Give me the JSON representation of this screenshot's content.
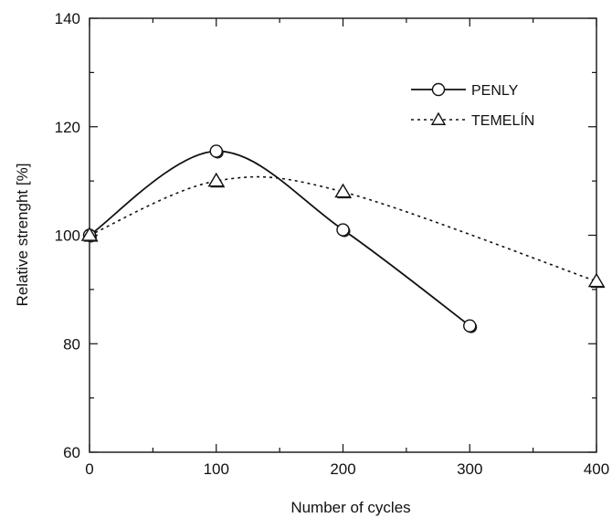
{
  "chart_data": {
    "type": "line",
    "xlabel": "Number of cycles",
    "ylabel": "Relative strenght [%]",
    "xlim": [
      0,
      400
    ],
    "ylim": [
      60,
      140
    ],
    "xticks": [
      0,
      100,
      200,
      300,
      400
    ],
    "yticks": [
      60,
      80,
      100,
      120,
      140
    ],
    "grid": false,
    "legend_position": "top-right",
    "series": [
      {
        "name": "PENLY",
        "marker": "circle",
        "line_style": "solid",
        "x": [
          0,
          100,
          200,
          300
        ],
        "y": [
          100,
          115.5,
          101,
          83.3
        ]
      },
      {
        "name": "TEMELÍN",
        "marker": "triangle",
        "line_style": "dotted",
        "x": [
          0,
          100,
          200,
          400
        ],
        "y": [
          100,
          110,
          108,
          91.5
        ]
      }
    ]
  }
}
